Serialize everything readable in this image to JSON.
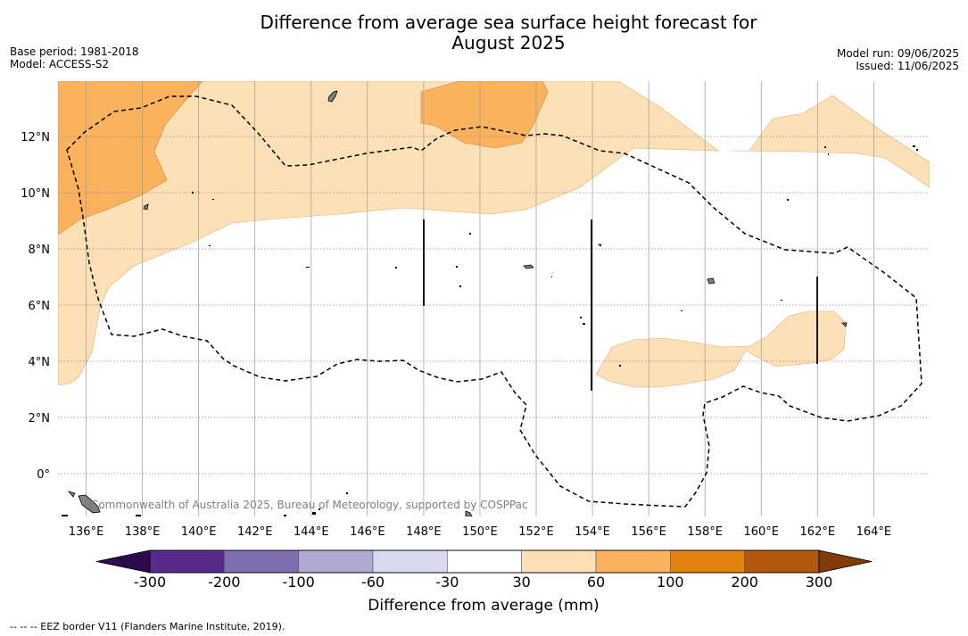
{
  "title_line1": "Difference from average sea surface height forecast for",
  "title_line2": "August 2025",
  "meta_left": [
    "Base period: 1981-2018",
    "Model: ACCESS-S2"
  ],
  "meta_right": [
    "Model run: 09/06/2025",
    "Issued: 11/06/2025"
  ],
  "copyright": "Commonwealth of Australia 2025, Bureau of Meteorology, supported by COSPPac",
  "footnote": "-- -- -- EEZ border V11 (Flanders Marine Institute, 2019).",
  "map": {
    "lon_range": [
      135,
      166
    ],
    "lat_range": [
      -1.5,
      14
    ],
    "lon_ticks": [
      "136°E",
      "138°E",
      "140°E",
      "142°E",
      "144°E",
      "146°E",
      "148°E",
      "150°E",
      "152°E",
      "154°E",
      "156°E",
      "158°E",
      "160°E",
      "162°E",
      "164°E"
    ],
    "lat_ticks": [
      "0°",
      "2°N",
      "4°N",
      "6°N",
      "8°N",
      "10°N",
      "12°N"
    ]
  },
  "colorbar": {
    "title": "Difference from average (mm)",
    "ticks": [
      "-300",
      "-200",
      "-100",
      "-60",
      "-30",
      "30",
      "60",
      "100",
      "200",
      "300"
    ],
    "colors": [
      "#2d0a4e",
      "#562b8c",
      "#7f6faf",
      "#afa8d2",
      "#d8d9ec",
      "#ffffff",
      "#fde0b5",
      "#fbb25c",
      "#e2830f",
      "#b3580a",
      "#7f3b08"
    ]
  },
  "colors": {
    "anomaly_30_60": "#fde0b5",
    "anomaly_60_100": "#fbb25c",
    "land": "#808080"
  }
}
